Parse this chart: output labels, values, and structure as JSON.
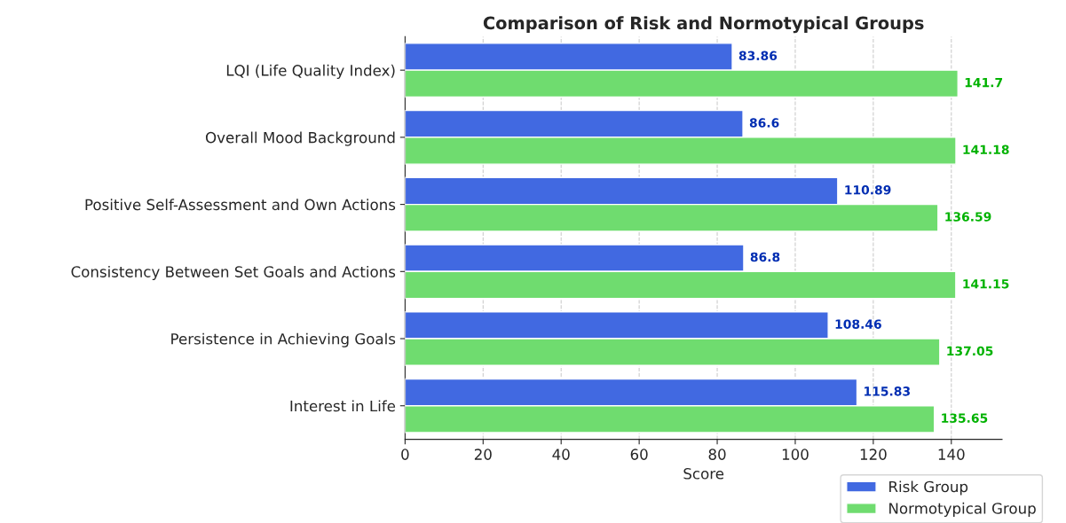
{
  "chart_data": {
    "type": "bar",
    "orientation": "horizontal",
    "title": "Comparison of Risk and Normotypical Groups",
    "xlabel": "Score",
    "categories": [
      "LQI (Life Quality Index)",
      "Overall Mood Background",
      "Positive Self-Assessment and Own Actions",
      "Consistency Between Set Goals and Actions",
      "Persistence in Achieving Goals",
      "Interest in Life"
    ],
    "series": [
      {
        "name": "Risk Group",
        "color": "#4169e1",
        "values": [
          83.86,
          86.6,
          110.89,
          86.8,
          108.46,
          115.83
        ]
      },
      {
        "name": "Normotypical Group",
        "color": "#6fdc6f",
        "values": [
          141.7,
          141.18,
          136.59,
          141.15,
          137.05,
          135.65
        ]
      }
    ],
    "data_labels": true,
    "xlim": [
      0,
      153
    ],
    "xticks": [
      0,
      20,
      40,
      60,
      80,
      100,
      120,
      140
    ],
    "grid": "x",
    "legend": "bottom right"
  }
}
